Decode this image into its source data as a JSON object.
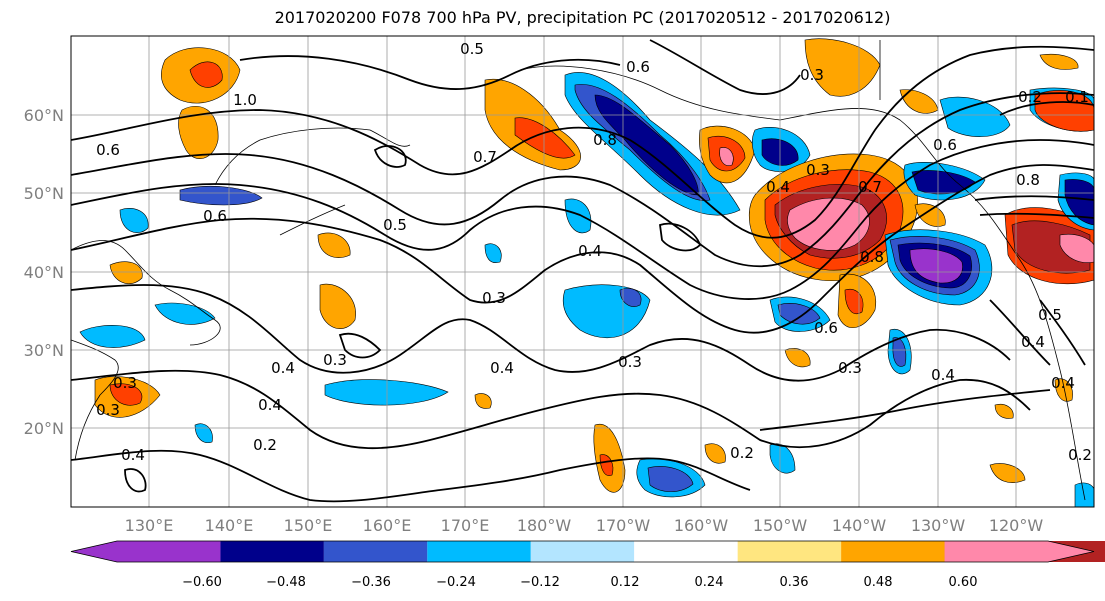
{
  "title": "2017020200 F078 700 hPa PV, precipitation PC (2017020512 - 2017020612)",
  "lat_labels": [
    "60°N",
    "50°N",
    "40°N",
    "30°N",
    "20°N"
  ],
  "lon_labels": [
    "130°E",
    "140°E",
    "150°E",
    "160°E",
    "170°E",
    "180°W",
    "170°W",
    "160°W",
    "150°W",
    "140°W",
    "130°W",
    "120°W"
  ],
  "colorbar": {
    "tick_labels": [
      "−0.60",
      "−0.48",
      "−0.36",
      "−0.24",
      "−0.12",
      "0.12",
      "0.24",
      "0.36",
      "0.48",
      "0.60"
    ],
    "colors": [
      "#9933cc",
      "#00008b",
      "#3355cc",
      "#00bbff",
      "#b3e5ff",
      "#ffffff",
      "#ffe680",
      "#ffa500",
      "#ff4000",
      "#b22222",
      "#ff88aa"
    ]
  },
  "contour_labels": [
    "0.5",
    "0.6",
    "0.3",
    "1.0",
    "0.8",
    "0.7",
    "0.6",
    "0.5",
    "0.4",
    "0.4",
    "0.8",
    "0.6",
    "0.3",
    "0.4",
    "0.3",
    "0.4",
    "0.3",
    "0.3",
    "0.6",
    "0.4",
    "0.2",
    "0.2",
    "0.4",
    "0.3",
    "0.4",
    "0.3",
    "0.2",
    "0.5",
    "0.4",
    "0.8",
    "0.6",
    "0.7",
    "0.3",
    "0.4",
    "0.1",
    "0.2"
  ]
}
